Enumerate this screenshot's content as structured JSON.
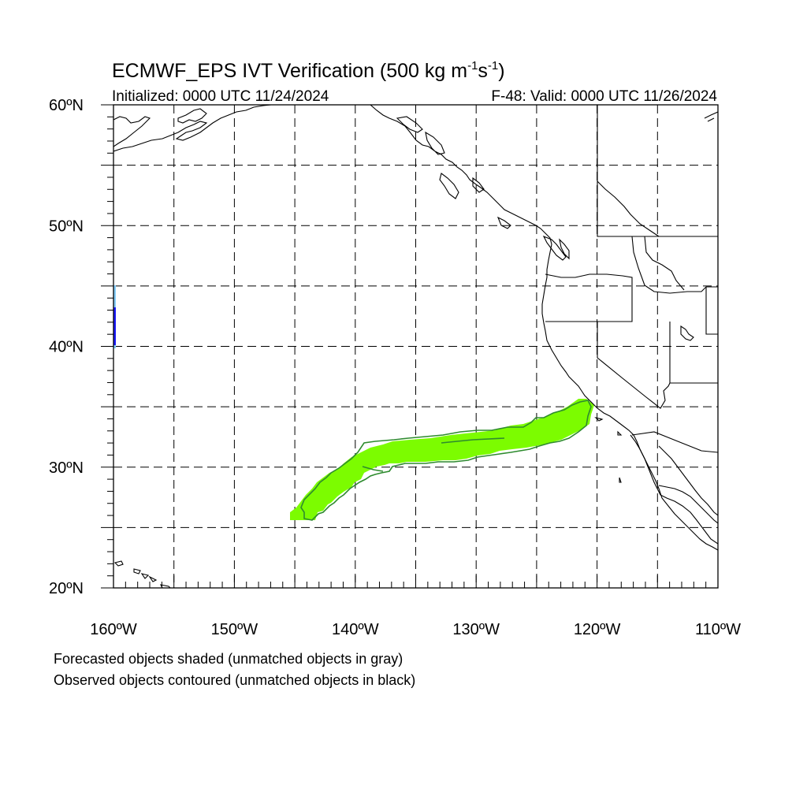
{
  "header": {
    "title_prefix": "ECMWF_EPS IVT Verification (500 kg m",
    "title_sup1": "-1",
    "title_mid": "s",
    "title_sup2": "-1",
    "title_suffix": ")",
    "initialized": "Initialized: 0000 UTC 11/24/2024",
    "valid": "F-48: Valid: 0000 UTC 11/26/2024"
  },
  "axes": {
    "lat_labels": [
      "60ºN",
      "50ºN",
      "40ºN",
      "30ºN",
      "20ºN"
    ],
    "lon_labels": [
      "160ºW",
      "150ºW",
      "140ºW",
      "130ºW",
      "120ºW",
      "110ºW"
    ]
  },
  "captions": {
    "forecast_note": "Forecasted objects shaded (unmatched objects in gray)",
    "observed_note": "Observed objects contoured (unmatched objects in black)"
  },
  "chart_data": {
    "type": "map",
    "projection": "cylindrical equidistant",
    "lon_range": [
      -160,
      -110
    ],
    "lat_range": [
      20,
      60
    ],
    "gridlines": "dashed, every 5 degrees",
    "colors": {
      "forecast_matched": "#7cfc00",
      "observed_matched_contour": "#2e8b2e",
      "forecast_edge_small": "#1c1cff",
      "forecast_edge_light": "#87cefa",
      "coastline": "#000000"
    },
    "objects": [
      {
        "kind": "forecast",
        "matched": true,
        "lon_extent": [
          -145,
          -121
        ],
        "lat_extent": [
          26,
          35.5
        ]
      },
      {
        "kind": "observed",
        "matched": true,
        "lon_extent": [
          -144.5,
          -121.3
        ],
        "lat_extent": [
          25.8,
          35.4
        ]
      },
      {
        "kind": "forecast",
        "matched": false,
        "lon_extent": [
          -160,
          -159.8
        ],
        "lat_extent": [
          40,
          45
        ]
      }
    ]
  }
}
